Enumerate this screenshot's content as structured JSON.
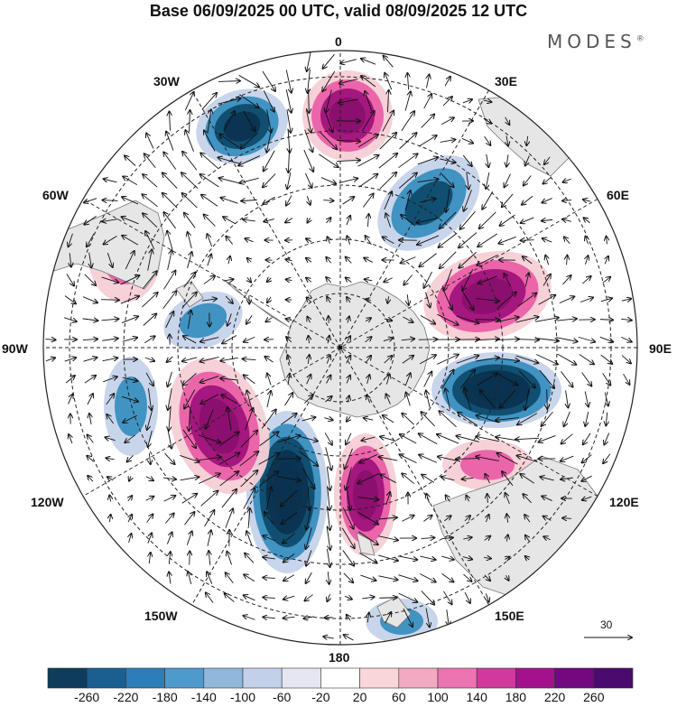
{
  "header": {
    "title": "Base 06/09/2025 00 UTC, valid 08/09/2025 12 UTC",
    "brand": "MODES",
    "brand_mark": "®"
  },
  "map": {
    "projection": "south-polar stereographic",
    "field": "anomaly (shaded) with wind vectors",
    "longitude_labels": {
      "top": "0",
      "bottom": "180",
      "left": "90W",
      "right": "90E",
      "upper_left_1": "30W",
      "upper_left_2": "60W",
      "upper_right_1": "30E",
      "upper_right_2": "60E",
      "lower_left_1": "120W",
      "lower_left_2": "150W",
      "lower_right_1": "120E",
      "lower_right_2": "150E"
    },
    "reference_vector": "30",
    "colors": {
      "neg_strong": "#0f4b6e",
      "neg_mid": "#3a8fc0",
      "neg_weak": "#c6d3ea",
      "pos_weak": "#f6cfd5",
      "pos_mid": "#ea5fa8",
      "pos_strong": "#a0137b",
      "land": "#e6e6e6"
    },
    "anomaly_centers": [
      {
        "name": "low-30W",
        "sign": "negative",
        "intensity": 3
      },
      {
        "name": "high-0",
        "sign": "positive",
        "intensity": 3
      },
      {
        "name": "low-40E",
        "sign": "negative",
        "intensity": 2
      },
      {
        "name": "high-70E",
        "sign": "positive",
        "intensity": 3
      },
      {
        "name": "low-95E",
        "sign": "negative",
        "intensity": 4
      },
      {
        "name": "high-115E",
        "sign": "positive",
        "intensity": 1
      },
      {
        "name": "high-170E",
        "sign": "positive",
        "intensity": 3
      },
      {
        "name": "low-160W",
        "sign": "negative",
        "intensity": 4
      },
      {
        "name": "high-130W",
        "sign": "positive",
        "intensity": 3
      },
      {
        "name": "low-100W",
        "sign": "negative",
        "intensity": 1
      },
      {
        "name": "low-80W",
        "sign": "negative",
        "intensity": 1
      },
      {
        "name": "high-65W",
        "sign": "positive",
        "intensity": 1
      },
      {
        "name": "low-150E",
        "sign": "negative",
        "intensity": 1
      }
    ]
  },
  "colorbar": {
    "ticks": [
      "-260",
      "-220",
      "-180",
      "-140",
      "-100",
      "-60",
      "-20",
      "20",
      "60",
      "100",
      "140",
      "180",
      "220",
      "260"
    ],
    "colors": [
      "#0d3c5c",
      "#1a5f90",
      "#2c7db8",
      "#4f9acc",
      "#8fb8dc",
      "#c3d0e9",
      "#e6e6f3",
      "#ffffff",
      "#f8d6da",
      "#f3a9c2",
      "#ec74b0",
      "#d03a9e",
      "#a3128c",
      "#72097f",
      "#4a0a6e"
    ]
  }
}
